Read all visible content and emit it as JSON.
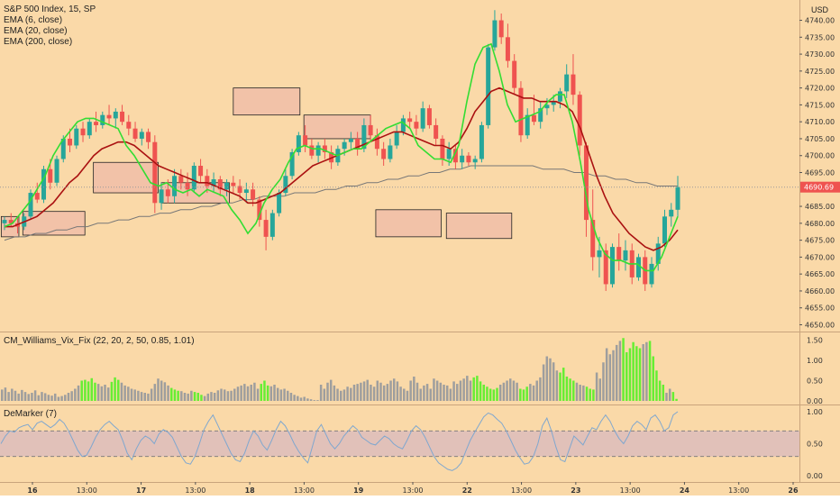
{
  "colors": {
    "background": "#fad9a8",
    "up_candle": "#26a69a",
    "down_candle": "#ef5350",
    "ema6": "#33dd33",
    "ema20": "#aa1111",
    "ema200": "#777777",
    "zone_fill": "#f2c2a8",
    "price_badge": "#ef5350",
    "wvf_gray": "#9e9e9e",
    "wvf_lime": "#66ee33",
    "demarker_line": "#7fa7cf",
    "demarker_band": "#dcbcbc"
  },
  "legend": {
    "main_title": "S&P 500 Index, 15, SP",
    "ema6": "EMA (6, close)",
    "ema20": "EMA (20, close)",
    "ema200": "EMA (200, close)",
    "wvf": "CM_Williams_Vix_Fix (22, 20, 2, 50, 0.85, 1.01)",
    "demarker": "DeMarker (7)"
  },
  "price_axis": {
    "currency": "USD",
    "ticks": [
      "4740.00",
      "4735.00",
      "4730.00",
      "4725.00",
      "4720.00",
      "4715.00",
      "4710.00",
      "4705.00",
      "4700.00",
      "4695.00",
      "4685.00",
      "4680.00",
      "4675.00",
      "4670.00",
      "4665.00",
      "4660.00",
      "4655.00",
      "4650.00"
    ],
    "last_price": "4690.69"
  },
  "wvf_axis": {
    "ticks": [
      "1.50",
      "1.00",
      "0.50",
      "0.00"
    ]
  },
  "demarker_axis": {
    "ticks": [
      "1.00",
      "0.50",
      "0.00"
    ]
  },
  "time_axis": {
    "labels": [
      "16",
      "13:00",
      "17",
      "13:00",
      "18",
      "13:00",
      "19",
      "13:00",
      "22",
      "13:00",
      "23",
      "13:00",
      "24",
      "13:00",
      "26"
    ]
  },
  "chart_data": {
    "type": "candlestick",
    "symbol": "S&P 500 Index",
    "interval": "15",
    "ylim": [
      4648,
      4746
    ],
    "last_price": 4690.69,
    "candles": [
      [
        4680,
        4682,
        4678,
        4681
      ],
      [
        4681,
        4683,
        4679,
        4680
      ],
      [
        4680,
        4682,
        4677,
        4679
      ],
      [
        4679,
        4683,
        4678,
        4682
      ],
      [
        4682,
        4690,
        4681,
        4689
      ],
      [
        4689,
        4692,
        4686,
        4687
      ],
      [
        4687,
        4697,
        4686,
        4696
      ],
      [
        4696,
        4699,
        4690,
        4692
      ],
      [
        4692,
        4700,
        4691,
        4699
      ],
      [
        4699,
        4706,
        4698,
        4705
      ],
      [
        4705,
        4708,
        4701,
        4703
      ],
      [
        4703,
        4709,
        4702,
        4708
      ],
      [
        4708,
        4710,
        4704,
        4706
      ],
      [
        4706,
        4711,
        4705,
        4710
      ],
      [
        4710,
        4713,
        4707,
        4709
      ],
      [
        4709,
        4713,
        4708,
        4712
      ],
      [
        4712,
        4715,
        4709,
        4711
      ],
      [
        4711,
        4714,
        4708,
        4713
      ],
      [
        4713,
        4715,
        4709,
        4710
      ],
      [
        4710,
        4712,
        4706,
        4708
      ],
      [
        4708,
        4710,
        4704,
        4705
      ],
      [
        4705,
        4708,
        4703,
        4707
      ],
      [
        4707,
        4708,
        4702,
        4704
      ],
      [
        4704,
        4706,
        4683,
        4686
      ],
      [
        4686,
        4692,
        4684,
        4690
      ],
      [
        4690,
        4693,
        4686,
        4688
      ],
      [
        4688,
        4696,
        4686,
        4694
      ],
      [
        4694,
        4696,
        4690,
        4692
      ],
      [
        4692,
        4695,
        4688,
        4690
      ],
      [
        4690,
        4698,
        4689,
        4697
      ],
      [
        4697,
        4699,
        4692,
        4694
      ],
      [
        4694,
        4696,
        4689,
        4691
      ],
      [
        4691,
        4695,
        4689,
        4693
      ],
      [
        4693,
        4694,
        4688,
        4690
      ],
      [
        4690,
        4693,
        4688,
        4692
      ],
      [
        4692,
        4694,
        4689,
        4691
      ],
      [
        4691,
        4693,
        4687,
        4689
      ],
      [
        4689,
        4692,
        4686,
        4690
      ],
      [
        4690,
        4692,
        4685,
        4687
      ],
      [
        4687,
        4688,
        4679,
        4681
      ],
      [
        4681,
        4684,
        4672,
        4676
      ],
      [
        4676,
        4684,
        4675,
        4683
      ],
      [
        4683,
        4690,
        4682,
        4689
      ],
      [
        4689,
        4696,
        4688,
        4694
      ],
      [
        4694,
        4702,
        4693,
        4701
      ],
      [
        4701,
        4707,
        4700,
        4706
      ],
      [
        4706,
        4709,
        4701,
        4703
      ],
      [
        4703,
        4705,
        4699,
        4700
      ],
      [
        4700,
        4704,
        4698,
        4703
      ],
      [
        4703,
        4705,
        4699,
        4701
      ],
      [
        4701,
        4703,
        4696,
        4698
      ],
      [
        4698,
        4703,
        4697,
        4702
      ],
      [
        4702,
        4705,
        4700,
        4704
      ],
      [
        4704,
        4707,
        4702,
        4705
      ],
      [
        4705,
        4707,
        4700,
        4702
      ],
      [
        4702,
        4711,
        4701,
        4709
      ],
      [
        4709,
        4712,
        4704,
        4706
      ],
      [
        4706,
        4708,
        4700,
        4702
      ],
      [
        4702,
        4704,
        4697,
        4699
      ],
      [
        4699,
        4705,
        4698,
        4703
      ],
      [
        4703,
        4709,
        4702,
        4707
      ],
      [
        4707,
        4712,
        4706,
        4711
      ],
      [
        4711,
        4713,
        4708,
        4710
      ],
      [
        4710,
        4712,
        4706,
        4708
      ],
      [
        4708,
        4716,
        4707,
        4714
      ],
      [
        4714,
        4715,
        4708,
        4709
      ],
      [
        4709,
        4711,
        4703,
        4705
      ],
      [
        4705,
        4706,
        4697,
        4699
      ],
      [
        4699,
        4704,
        4697,
        4702
      ],
      [
        4702,
        4703,
        4696,
        4698
      ],
      [
        4698,
        4702,
        4696,
        4700
      ],
      [
        4700,
        4701,
        4697,
        4698
      ],
      [
        4698,
        4700,
        4696,
        4699
      ],
      [
        4699,
        4710,
        4698,
        4709
      ],
      [
        4709,
        4733,
        4708,
        4732
      ],
      [
        4732,
        4743,
        4731,
        4740
      ],
      [
        4740,
        4742,
        4733,
        4735
      ],
      [
        4735,
        4739,
        4726,
        4728
      ],
      [
        4728,
        4730,
        4718,
        4720
      ],
      [
        4720,
        4722,
        4704,
        4706
      ],
      [
        4706,
        4714,
        4705,
        4712
      ],
      [
        4712,
        4718,
        4709,
        4710
      ],
      [
        4710,
        4716,
        4708,
        4714
      ],
      [
        4714,
        4717,
        4712,
        4715
      ],
      [
        4715,
        4718,
        4713,
        4716
      ],
      [
        4716,
        4720,
        4714,
        4719
      ],
      [
        4719,
        4727,
        4717,
        4724
      ],
      [
        4724,
        4730,
        4715,
        4718
      ],
      [
        4718,
        4719,
        4700,
        4703
      ],
      [
        4703,
        4704,
        4676,
        4681
      ],
      [
        4681,
        4690,
        4666,
        4670
      ],
      [
        4670,
        4676,
        4664,
        4672
      ],
      [
        4672,
        4674,
        4660,
        4662
      ],
      [
        4662,
        4674,
        4661,
        4673
      ],
      [
        4673,
        4677,
        4666,
        4669
      ],
      [
        4669,
        4675,
        4666,
        4672
      ],
      [
        4672,
        4674,
        4662,
        4664
      ],
      [
        4664,
        4671,
        4663,
        4670
      ],
      [
        4670,
        4672,
        4660,
        4662
      ],
      [
        4662,
        4670,
        4661,
        4668
      ],
      [
        4668,
        4676,
        4666,
        4674
      ],
      [
        4674,
        4684,
        4673,
        4682
      ],
      [
        4682,
        4686,
        4679,
        4684
      ],
      [
        4684,
        4694,
        4682,
        4690.69
      ]
    ],
    "ema6": [
      4679,
      4680,
      4683,
      4686,
      4690,
      4694,
      4700,
      4704,
      4707,
      4710,
      4711,
      4711,
      4710,
      4709,
      4708,
      4703,
      4700,
      4696,
      4692,
      4691,
      4692,
      4690,
      4689,
      4690,
      4688,
      4690,
      4689,
      4688,
      4684,
      4681,
      4677,
      4680,
      4686,
      4690,
      4693,
      4698,
      4702,
      4703,
      4702,
      4702,
      4701,
      4700,
      4701,
      4702,
      4702,
      4704,
      4706,
      4708,
      4709,
      4710,
      4708,
      4703,
      4701,
      4699,
      4699,
      4698,
      4703,
      4716,
      4727,
      4732,
      4733,
      4725,
      4715,
      4710,
      4711,
      4712,
      4713,
      4716,
      4718,
      4718,
      4710,
      4698,
      4684,
      4676,
      4671,
      4669,
      4669,
      4668,
      4668,
      4666,
      4666,
      4670,
      4676,
      4682
    ],
    "ema20": [
      4679,
      4679,
      4680,
      4681,
      4682,
      4684,
      4686,
      4689,
      4692,
      4694,
      4697,
      4700,
      4702,
      4703,
      4704,
      4704,
      4703,
      4701,
      4699,
      4697,
      4696,
      4695,
      4694,
      4693,
      4692,
      4692,
      4691,
      4690,
      4689,
      4688,
      4686,
      4686,
      4687,
      4688,
      4689,
      4691,
      4693,
      4695,
      4697,
      4698,
      4699,
      4700,
      4701,
      4702,
      4703,
      4704,
      4705,
      4706,
      4707,
      4707,
      4706,
      4705,
      4704,
      4703,
      4703,
      4702,
      4704,
      4708,
      4713,
      4716,
      4719,
      4720,
      4719,
      4718,
      4717,
      4717,
      4716,
      4716,
      4716,
      4715,
      4713,
      4708,
      4701,
      4694,
      4688,
      4683,
      4680,
      4677,
      4675,
      4673,
      4672,
      4673,
      4675,
      4678
    ],
    "ema200": [
      4675,
      4676,
      4676,
      4677,
      4677,
      4678,
      4678,
      4679,
      4679,
      4680,
      4680,
      4681,
      4681,
      4682,
      4682,
      4683,
      4683,
      4684,
      4684,
      4685,
      4685,
      4686,
      4686,
      4687,
      4687,
      4688,
      4688,
      4688,
      4689,
      4689,
      4689,
      4690,
      4690,
      4691,
      4691,
      4692,
      4692,
      4693,
      4693,
      4694,
      4694,
      4695,
      4695,
      4696,
      4696,
      4697,
      4697,
      4697,
      4697,
      4697,
      4697,
      4697,
      4696,
      4696,
      4696,
      4695,
      4695,
      4694,
      4694,
      4693,
      4693,
      4692,
      4692,
      4691,
      4691,
      4691
    ],
    "zones": [
      {
        "t0": -0.5,
        "t1": 2.2,
        "top": 4682,
        "bottom": 4676
      },
      {
        "t0": 2.8,
        "t1": 12.3,
        "top": 4683.5,
        "bottom": 4676.5
      },
      {
        "t0": 13.6,
        "t1": 23.5,
        "top": 4698,
        "bottom": 4689
      },
      {
        "t0": 24.0,
        "t1": 34.4,
        "top": 4692,
        "bottom": 4686
      },
      {
        "t0": 35.0,
        "t1": 45.2,
        "top": 4720,
        "bottom": 4712
      },
      {
        "t0": 45.8,
        "t1": 56.0,
        "top": 4712,
        "bottom": 4705
      },
      {
        "t0": 56.8,
        "t1": 66.8,
        "top": 4684,
        "bottom": 4676
      },
      {
        "t0": 67.6,
        "t1": 77.6,
        "top": 4683,
        "bottom": 4675.5
      }
    ],
    "wvf": {
      "values": [
        0.28,
        0.33,
        0.22,
        0.3,
        0.25,
        0.18,
        0.27,
        0.22,
        0.17,
        0.2,
        0.26,
        0.14,
        0.22,
        0.19,
        0.15,
        0.13,
        0.18,
        0.1,
        0.12,
        0.15,
        0.2,
        0.24,
        0.3,
        0.38,
        0.5,
        0.52,
        0.48,
        0.56,
        0.45,
        0.42,
        0.36,
        0.4,
        0.33,
        0.47,
        0.58,
        0.52,
        0.45,
        0.38,
        0.35,
        0.3,
        0.28,
        0.25,
        0.22,
        0.2,
        0.18,
        0.3,
        0.42,
        0.55,
        0.5,
        0.46,
        0.38,
        0.32,
        0.28,
        0.25,
        0.24,
        0.2,
        0.18,
        0.25,
        0.22,
        0.2,
        0.15,
        0.12,
        0.18,
        0.22,
        0.2,
        0.26,
        0.3,
        0.28,
        0.24,
        0.25,
        0.3,
        0.35,
        0.38,
        0.42,
        0.36,
        0.4,
        0.45,
        0.3,
        0.42,
        0.5,
        0.38,
        0.36,
        0.4,
        0.32,
        0.28,
        0.3,
        0.25,
        0.2,
        0.15,
        0.12,
        0.08,
        0.1,
        0.06,
        0.04,
        0.02,
        0.02,
        0.4,
        0.3,
        0.45,
        0.52,
        0.38,
        0.3,
        0.25,
        0.28,
        0.35,
        0.32,
        0.4,
        0.42,
        0.45,
        0.48,
        0.52,
        0.4,
        0.35,
        0.5,
        0.45,
        0.38,
        0.42,
        0.5,
        0.55,
        0.48,
        0.35,
        0.3,
        0.25,
        0.5,
        0.6,
        0.45,
        0.3,
        0.38,
        0.42,
        0.3,
        0.55,
        0.5,
        0.45,
        0.4,
        0.38,
        0.3,
        0.48,
        0.42,
        0.5,
        0.55,
        0.62,
        0.5,
        0.58,
        0.62,
        0.48,
        0.4,
        0.35,
        0.3,
        0.28,
        0.32,
        0.4,
        0.45,
        0.5,
        0.55,
        0.5,
        0.45,
        0.3,
        0.28,
        0.35,
        0.42,
        0.38,
        0.5,
        0.58,
        0.9,
        1.1,
        1.05,
        0.95,
        0.75,
        0.7,
        0.82,
        0.6,
        0.55,
        0.5,
        0.45,
        0.4,
        0.38,
        0.35,
        0.3,
        0.28,
        0.7,
        0.55,
        0.95,
        1.3,
        1.15,
        1.25,
        1.38,
        1.48,
        1.55,
        1.2,
        1.3,
        1.45,
        1.35,
        1.3,
        1.4,
        1.45,
        1.48,
        1.1,
        0.75,
        0.5,
        0.4,
        0.2,
        0.3,
        0.22,
        0.05
      ],
      "lime_ranges": [
        [
          24,
          28
        ],
        [
          33,
          35
        ],
        [
          51,
          53
        ],
        [
          58,
          60
        ],
        [
          78,
          80
        ],
        [
          142,
          149
        ],
        [
          156,
          158
        ],
        [
          168,
          172
        ],
        [
          176,
          178
        ],
        [
          187,
          192
        ],
        [
          195,
          199
        ],
        [
          202,
          206
        ]
      ]
    },
    "demarker": {
      "band": [
        0.3,
        0.7
      ],
      "values": [
        0.5,
        0.62,
        0.7,
        0.68,
        0.75,
        0.78,
        0.8,
        0.72,
        0.82,
        0.85,
        0.8,
        0.75,
        0.8,
        0.88,
        0.82,
        0.7,
        0.55,
        0.4,
        0.3,
        0.32,
        0.45,
        0.6,
        0.72,
        0.8,
        0.85,
        0.78,
        0.72,
        0.55,
        0.35,
        0.25,
        0.42,
        0.55,
        0.62,
        0.58,
        0.5,
        0.65,
        0.72,
        0.68,
        0.6,
        0.45,
        0.3,
        0.2,
        0.18,
        0.3,
        0.5,
        0.72,
        0.85,
        0.95,
        0.8,
        0.65,
        0.5,
        0.35,
        0.25,
        0.22,
        0.35,
        0.55,
        0.7,
        0.62,
        0.48,
        0.4,
        0.55,
        0.72,
        0.85,
        0.78,
        0.65,
        0.5,
        0.38,
        0.28,
        0.2,
        0.45,
        0.7,
        0.8,
        0.65,
        0.5,
        0.42,
        0.5,
        0.62,
        0.7,
        0.78,
        0.72,
        0.6,
        0.55,
        0.5,
        0.48,
        0.55,
        0.62,
        0.58,
        0.5,
        0.45,
        0.42,
        0.55,
        0.7,
        0.78,
        0.72,
        0.6,
        0.45,
        0.3,
        0.2,
        0.15,
        0.1,
        0.08,
        0.12,
        0.2,
        0.38,
        0.55,
        0.68,
        0.8,
        0.92,
        0.98,
        0.95,
        0.88,
        0.82,
        0.7,
        0.55,
        0.4,
        0.28,
        0.18,
        0.2,
        0.3,
        0.5,
        0.78,
        0.9,
        0.7,
        0.45,
        0.25,
        0.22,
        0.42,
        0.62,
        0.55,
        0.48,
        0.62,
        0.75,
        0.72,
        0.85,
        0.95,
        0.85,
        0.7,
        0.58,
        0.5,
        0.62,
        0.78,
        0.85,
        0.8,
        0.72,
        0.9,
        0.95,
        0.85,
        0.7,
        0.75,
        0.95,
        1.0
      ]
    }
  }
}
